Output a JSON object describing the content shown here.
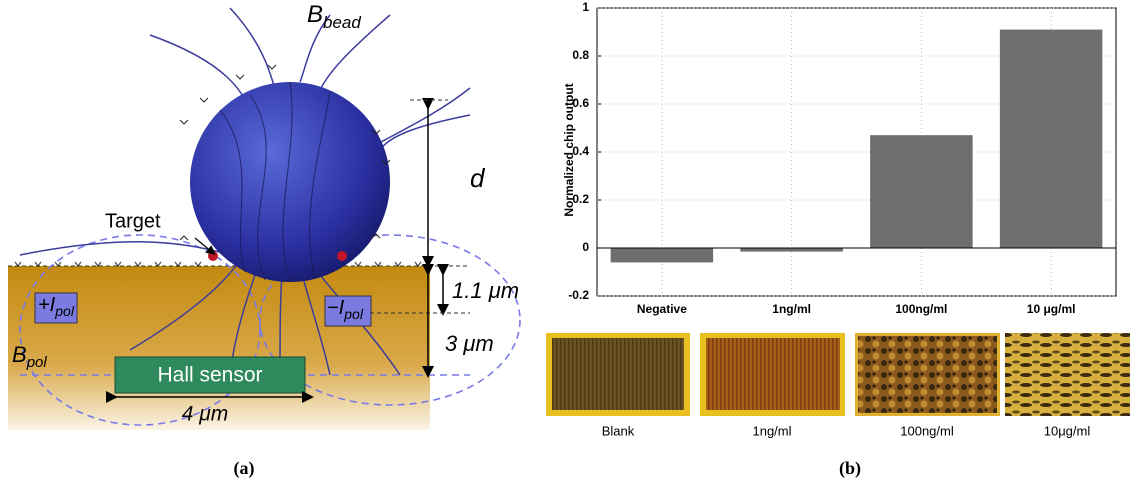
{
  "panel_a": {
    "b_bead": {
      "main": "B",
      "sub": "bead"
    },
    "d": "d",
    "target": "Target",
    "thickness_top": "1.1 μm",
    "thickness_total": "3 μm",
    "plus_ipol": {
      "main": "+I",
      "sub": "pol"
    },
    "minus_ipol": {
      "main": "−I",
      "sub": "pol"
    },
    "b_pol": {
      "main": "B",
      "sub": "pol"
    },
    "hall_sensor": "Hall sensor",
    "width": "4 μm",
    "caption": "(a)"
  },
  "chart_data": {
    "type": "bar",
    "ylabel": "Normalized  chip output",
    "categories": [
      "Negative",
      "1ng/ml",
      "100ng/ml",
      "10 μg/ml"
    ],
    "values": [
      -0.06,
      -0.015,
      0.47,
      0.91
    ],
    "color": "#6e6e6e",
    "ylim": [
      -0.2,
      1
    ],
    "yticks": [
      -0.2,
      0,
      0.2,
      0.4,
      0.6,
      0.8,
      1
    ],
    "grid": true
  },
  "micrographs": [
    "Blank",
    "1ng/ml",
    "100ng/ml",
    "10μg/ml"
  ],
  "panel_b_caption": "(b)"
}
